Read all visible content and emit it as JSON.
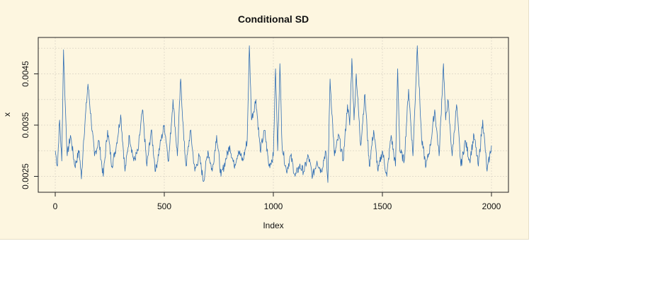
{
  "chart_data": {
    "type": "line",
    "title": "Conditional SD",
    "xlabel": "Index",
    "ylabel": "x",
    "xlim": [
      0,
      2000
    ],
    "ylim": [
      0.0023,
      0.0051
    ],
    "x_ticks": [
      0,
      500,
      1000,
      1500,
      2000
    ],
    "x_tick_labels": [
      "0",
      "500",
      "1000",
      "1500",
      "2000"
    ],
    "y_ticks": [
      0.0025,
      0.0035,
      0.0045
    ],
    "y_tick_labels": [
      "0.0025",
      "0.0035",
      "0.0045"
    ],
    "grid": true,
    "grid_x": [
      0,
      500,
      1000,
      1500,
      2000
    ],
    "grid_y": [
      0.0025,
      0.003,
      0.0035,
      0.004,
      0.0045,
      0.005
    ],
    "series": [
      {
        "color": "#2f6db3",
        "x": [
          0,
          10,
          20,
          30,
          38,
          45,
          55,
          70,
          90,
          110,
          120,
          130,
          150,
          165,
          180,
          200,
          220,
          240,
          260,
          280,
          300,
          320,
          340,
          360,
          380,
          400,
          420,
          440,
          460,
          480,
          500,
          520,
          540,
          560,
          575,
          590,
          600,
          620,
          640,
          660,
          680,
          700,
          720,
          740,
          760,
          780,
          800,
          820,
          840,
          860,
          880,
          890,
          900,
          920,
          940,
          960,
          980,
          1000,
          1010,
          1020,
          1030,
          1040,
          1060,
          1080,
          1100,
          1120,
          1140,
          1160,
          1180,
          1200,
          1220,
          1240,
          1250,
          1260,
          1280,
          1300,
          1320,
          1340,
          1350,
          1360,
          1370,
          1380,
          1400,
          1420,
          1440,
          1460,
          1480,
          1500,
          1520,
          1540,
          1560,
          1570,
          1580,
          1600,
          1620,
          1640,
          1660,
          1680,
          1700,
          1720,
          1740,
          1760,
          1780,
          1790,
          1800,
          1820,
          1840,
          1860,
          1880,
          1900,
          1920,
          1940,
          1960,
          1980,
          2000
        ],
        "values": [
          0.003,
          0.0027,
          0.0036,
          0.0028,
          0.00497,
          0.004,
          0.0029,
          0.0033,
          0.0027,
          0.003,
          0.00245,
          0.0032,
          0.0043,
          0.0036,
          0.0029,
          0.0032,
          0.0025,
          0.0034,
          0.0027,
          0.0031,
          0.0037,
          0.0026,
          0.0033,
          0.0028,
          0.003,
          0.0038,
          0.0027,
          0.0034,
          0.0026,
          0.0031,
          0.0035,
          0.0028,
          0.004,
          0.0029,
          0.0044,
          0.0032,
          0.0027,
          0.0034,
          0.0026,
          0.0029,
          0.0024,
          0.003,
          0.0026,
          0.0033,
          0.0025,
          0.0028,
          0.0031,
          0.0027,
          0.003,
          0.0028,
          0.0032,
          0.00505,
          0.0036,
          0.004,
          0.003,
          0.0034,
          0.0027,
          0.0029,
          0.0046,
          0.003,
          0.0047,
          0.0031,
          0.0026,
          0.0029,
          0.0025,
          0.0027,
          0.0026,
          0.0029,
          0.0025,
          0.0028,
          0.0026,
          0.003,
          0.00238,
          0.0044,
          0.0029,
          0.0033,
          0.0028,
          0.0039,
          0.0035,
          0.0048,
          0.0036,
          0.0045,
          0.0031,
          0.0041,
          0.0027,
          0.0034,
          0.0026,
          0.003,
          0.0025,
          0.0033,
          0.0027,
          0.0046,
          0.003,
          0.0028,
          0.0042,
          0.0029,
          0.00505,
          0.0032,
          0.0027,
          0.0031,
          0.0038,
          0.0029,
          0.0047,
          0.0036,
          0.004,
          0.0029,
          0.0039,
          0.0027,
          0.0032,
          0.0028,
          0.0033,
          0.0027,
          0.0036,
          0.0026,
          0.0031
        ]
      }
    ]
  }
}
